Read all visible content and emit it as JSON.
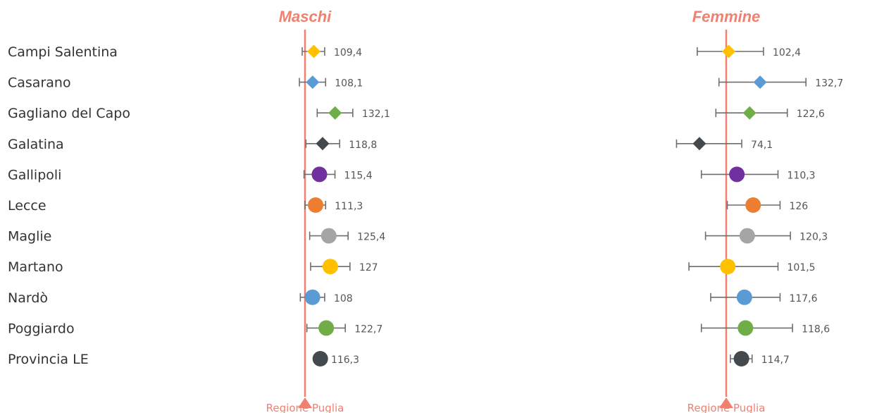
{
  "chart_data": [
    {
      "type": "scatter",
      "title": "Maschi",
      "reference": {
        "label": "Regione Puglia",
        "value": 100
      },
      "categories": [
        "Campi Salentina",
        "Casarano",
        "Gagliano del Capo",
        "Galatina",
        "Gallipoli",
        "Lecce",
        "Maglie",
        "Martano",
        "Nardò",
        "Poggiardo",
        "Provincia LE"
      ],
      "values": [
        109.4,
        108.1,
        132.1,
        118.8,
        115.4,
        111.3,
        125.4,
        127,
        108,
        122.7,
        116.3
      ],
      "value_labels": [
        "109,4",
        "108,1",
        "132,1",
        "118,8",
        "115,4",
        "111,3",
        "125,4",
        "127",
        "108",
        "122,7",
        "116,3"
      ],
      "ci_low": [
        97,
        94,
        113,
        101,
        99,
        100,
        105,
        106,
        95,
        102,
        115
      ],
      "ci_high": [
        121,
        122,
        151,
        137,
        132,
        122,
        146,
        148,
        121,
        143,
        118
      ]
    },
    {
      "type": "scatter",
      "title": "Femmine",
      "reference": {
        "label": "Regione Puglia",
        "value": 100
      },
      "categories": [
        "Campi Salentina",
        "Casarano",
        "Gagliano del Capo",
        "Galatina",
        "Gallipoli",
        "Lecce",
        "Maglie",
        "Martano",
        "Nardò",
        "Poggiardo",
        "Provincia LE"
      ],
      "values": [
        102.4,
        132.7,
        122.6,
        74.1,
        110.3,
        126,
        120.3,
        101.5,
        117.6,
        118.6,
        114.7
      ],
      "value_labels": [
        "102,4",
        "132,7",
        "122,6",
        "74,1",
        "110,3",
        "126",
        "120,3",
        "101,5",
        "117,6",
        "118,6",
        "114,7"
      ],
      "ci_low": [
        72,
        93,
        90,
        52,
        76,
        101,
        80,
        64,
        85,
        76,
        104
      ],
      "ci_high": [
        136,
        177,
        159,
        115,
        150,
        152,
        162,
        150,
        152,
        164,
        125
      ]
    }
  ],
  "marker_styles": [
    {
      "shape": "diamond",
      "color": "#FFC000"
    },
    {
      "shape": "diamond",
      "color": "#5B9BD5"
    },
    {
      "shape": "diamond",
      "color": "#70AD47"
    },
    {
      "shape": "diamond",
      "color": "#44494D"
    },
    {
      "shape": "circle",
      "color": "#7030A0"
    },
    {
      "shape": "circle",
      "color": "#ED7D31"
    },
    {
      "shape": "circle",
      "color": "#A5A5A5"
    },
    {
      "shape": "circle",
      "color": "#FFC000"
    },
    {
      "shape": "circle",
      "color": "#5B9BD5"
    },
    {
      "shape": "circle",
      "color": "#70AD47"
    },
    {
      "shape": "circle",
      "color": "#44494D"
    }
  ],
  "colors": {
    "reference": "#F08070",
    "errorbar": "#6E6E6E",
    "label_text": "#333333",
    "value_text": "#555555"
  }
}
